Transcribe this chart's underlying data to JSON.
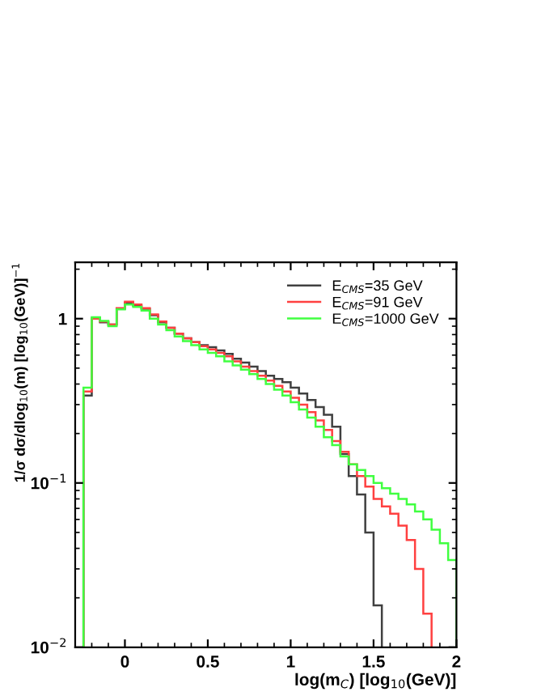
{
  "chart_data": {
    "type": "histogram",
    "xlabel": "log(m$_{C}$) [log$_{10}$(GeV)]",
    "ylabel": "1/σ dσ/dlog$_{10}$(m) [log$_{10}$(GeV)]$^{−1}$",
    "bins": [
      -0.25,
      -0.2,
      -0.15,
      -0.1,
      -0.05,
      0,
      0.05,
      0.1,
      0.15,
      0.2,
      0.25,
      0.3,
      0.35,
      0.4,
      0.45,
      0.5,
      0.55,
      0.6,
      0.65,
      0.7,
      0.75,
      0.8,
      0.85,
      0.9,
      0.95,
      1.0,
      1.05,
      1.1,
      1.15,
      1.2,
      1.25,
      1.3,
      1.35,
      1.4,
      1.45,
      1.5,
      1.55,
      1.6,
      1.65,
      1.7,
      1.75,
      1.8,
      1.85,
      1.9,
      1.95,
      2.0
    ],
    "series": [
      {
        "name": "E$_{CMS}$=35 GeV",
        "color": "#404040",
        "bins": [
          -0.25,
          -0.2,
          -0.15,
          -0.1,
          -0.05,
          0,
          0.05,
          0.1,
          0.15,
          0.2,
          0.25,
          0.3,
          0.35,
          0.4,
          0.45,
          0.5,
          0.55,
          0.6,
          0.65,
          0.7,
          0.75,
          0.8,
          0.85,
          0.9,
          0.95,
          1.0,
          1.05,
          1.1,
          1.15,
          1.2,
          1.25,
          1.3,
          1.35,
          1.4,
          1.45,
          1.5,
          1.55
        ],
        "values": [
          0.34,
          1.0,
          0.95,
          0.92,
          1.15,
          1.25,
          1.2,
          1.15,
          1.05,
          0.95,
          0.88,
          0.81,
          0.76,
          0.72,
          0.69,
          0.67,
          0.64,
          0.61,
          0.57,
          0.54,
          0.51,
          0.48,
          0.45,
          0.43,
          0.41,
          0.38,
          0.35,
          0.32,
          0.29,
          0.26,
          0.22,
          0.15,
          0.11,
          0.085,
          0.05,
          0.018
        ]
      },
      {
        "name": "E$_{CMS}$=91 GeV",
        "color": "#ff4040",
        "bins": [
          -0.25,
          -0.2,
          -0.15,
          -0.1,
          -0.05,
          0,
          0.05,
          0.1,
          0.15,
          0.2,
          0.25,
          0.3,
          0.35,
          0.4,
          0.45,
          0.5,
          0.55,
          0.6,
          0.65,
          0.7,
          0.75,
          0.8,
          0.85,
          0.9,
          0.95,
          1.0,
          1.05,
          1.1,
          1.15,
          1.2,
          1.25,
          1.3,
          1.35,
          1.4,
          1.45,
          1.5,
          1.55,
          1.6,
          1.65,
          1.7,
          1.75,
          1.8,
          1.85
        ],
        "values": [
          0.36,
          1.0,
          0.96,
          0.92,
          1.16,
          1.27,
          1.22,
          1.16,
          1.06,
          0.96,
          0.88,
          0.81,
          0.76,
          0.72,
          0.68,
          0.65,
          0.62,
          0.59,
          0.55,
          0.51,
          0.48,
          0.45,
          0.42,
          0.39,
          0.36,
          0.33,
          0.3,
          0.27,
          0.24,
          0.21,
          0.18,
          0.155,
          0.13,
          0.11,
          0.095,
          0.08,
          0.072,
          0.065,
          0.055,
          0.045,
          0.03,
          0.016
        ]
      },
      {
        "name": "E$_{CMS}$=1000 GeV",
        "color": "#40ff40",
        "values": [
          0.38,
          1.02,
          0.97,
          0.9,
          1.14,
          1.22,
          1.18,
          1.12,
          1.0,
          0.92,
          0.85,
          0.78,
          0.73,
          0.69,
          0.65,
          0.62,
          0.59,
          0.55,
          0.52,
          0.49,
          0.46,
          0.43,
          0.4,
          0.37,
          0.34,
          0.31,
          0.28,
          0.25,
          0.22,
          0.19,
          0.17,
          0.145,
          0.13,
          0.12,
          0.11,
          0.1,
          0.093,
          0.086,
          0.08,
          0.074,
          0.067,
          0.06,
          0.052,
          0.043,
          0.034
        ]
      }
    ],
    "log": "y",
    "xlim": [
      -0.3,
      2
    ],
    "ylim": [
      0.01,
      2.2
    ],
    "xticks": [
      0,
      0.5,
      1,
      1.5,
      2
    ],
    "yticks": [
      {
        "value": 0.01,
        "label": "10$^{−2}$"
      },
      {
        "value": 0.1,
        "label": "10$^{−1}$"
      },
      1
    ],
    "grid": false,
    "legend": "top right"
  }
}
